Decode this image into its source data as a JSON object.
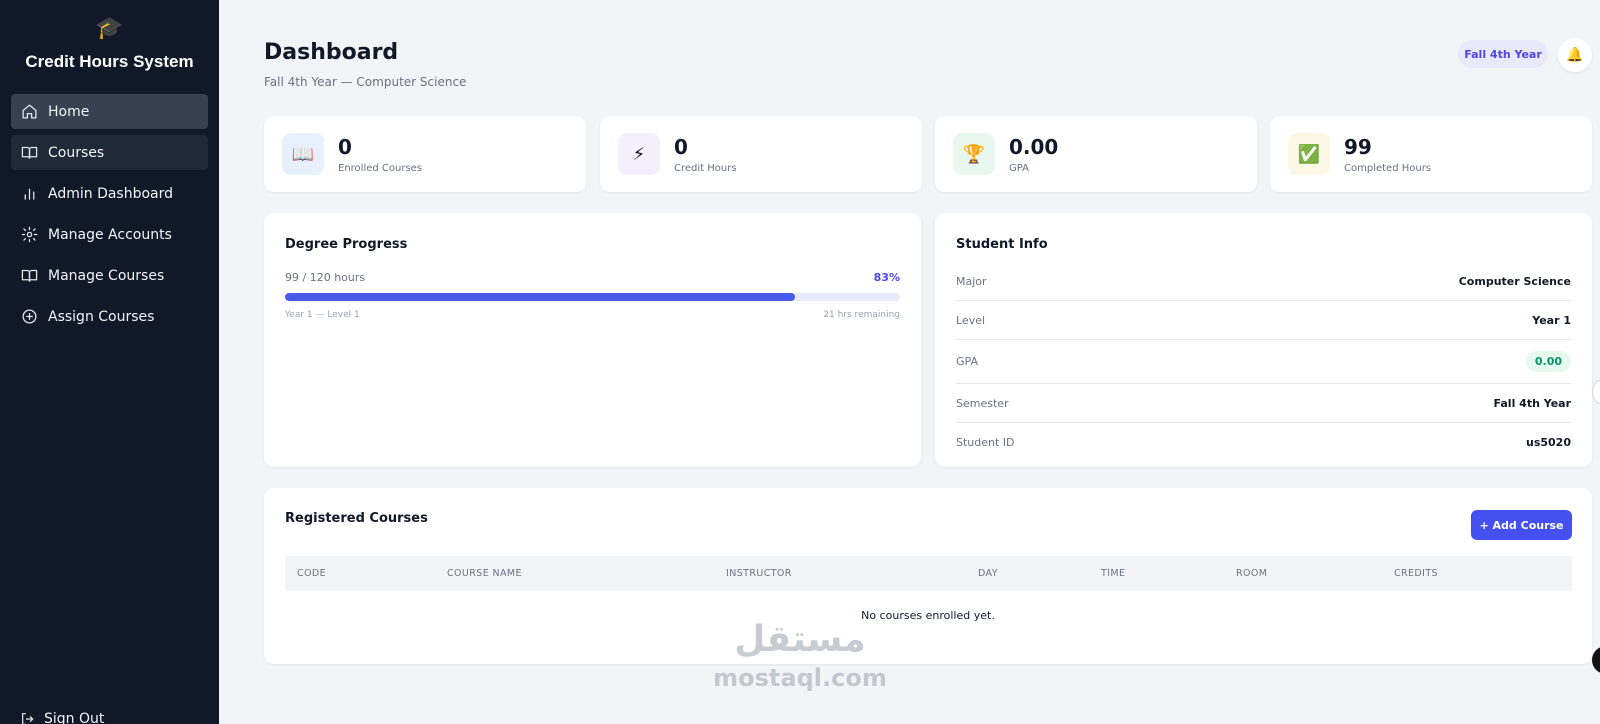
{
  "app": {
    "title": "Credit Hours System",
    "logo_icon": "graduation-cap-icon"
  },
  "sidebar": {
    "items": [
      {
        "label": "Home",
        "icon": "home-icon",
        "state": "active"
      },
      {
        "label": "Courses",
        "icon": "book-open-icon",
        "state": "hover"
      },
      {
        "label": "Admin Dashboard",
        "icon": "bar-chart-icon",
        "state": "normal"
      },
      {
        "label": "Manage Accounts",
        "icon": "gear-icon",
        "state": "normal"
      },
      {
        "label": "Manage Courses",
        "icon": "book-open-icon",
        "state": "normal"
      },
      {
        "label": "Assign Courses",
        "icon": "plus-circle-icon",
        "state": "normal"
      }
    ],
    "signout_label": "Sign Out"
  },
  "header": {
    "title": "Dashboard",
    "subtitle": "Fall 4th Year — Computer Science",
    "semester_badge": "Fall 4th Year",
    "bell_icon": "bell-icon"
  },
  "stats": [
    {
      "value": "0",
      "label": "Enrolled Courses",
      "icon": "book-icon",
      "emoji": "📖",
      "tile_color": "#e8f0fd"
    },
    {
      "value": "0",
      "label": "Credit Hours",
      "icon": "lightning-icon",
      "emoji": "⚡",
      "tile_color": "#f3f0fb"
    },
    {
      "value": "0.00",
      "label": "GPA",
      "icon": "trophy-icon",
      "emoji": "🏆",
      "tile_color": "#e8f8f1"
    },
    {
      "value": "99",
      "label": "Completed Hours",
      "icon": "checkbox-icon",
      "emoji": "✅",
      "tile_color": "#fdf8e6"
    }
  ],
  "degree_progress": {
    "title": "Degree Progress",
    "hours_text": "99 / 120 hours",
    "percent_text": "83%",
    "fraction": 0.83,
    "level_text": "Year 1 — Level 1",
    "remaining_text": "21 hrs remaining"
  },
  "student_info": {
    "title": "Student Info",
    "rows": [
      {
        "key": "Major",
        "value": "Computer Science"
      },
      {
        "key": "Level",
        "value": "Year 1"
      },
      {
        "key": "GPA",
        "value": "0.00"
      },
      {
        "key": "Semester",
        "value": "Fall 4th Year"
      },
      {
        "key": "Student ID",
        "value": "us5020"
      }
    ]
  },
  "registered_courses": {
    "title": "Registered Courses",
    "add_button": "+ Add Course",
    "columns": [
      "CODE",
      "COURSE NAME",
      "INSTRUCTOR",
      "DAY",
      "TIME",
      "ROOM",
      "CREDITS"
    ],
    "empty_text": "No courses enrolled yet."
  },
  "watermark": {
    "arabic": "مستقل",
    "latin": "mostaql.com"
  },
  "colors": {
    "sidebar_bg": "#111827",
    "accent": "#4451f0",
    "progress_fill": "#4a5ae8",
    "gpa_green": "#059669"
  }
}
